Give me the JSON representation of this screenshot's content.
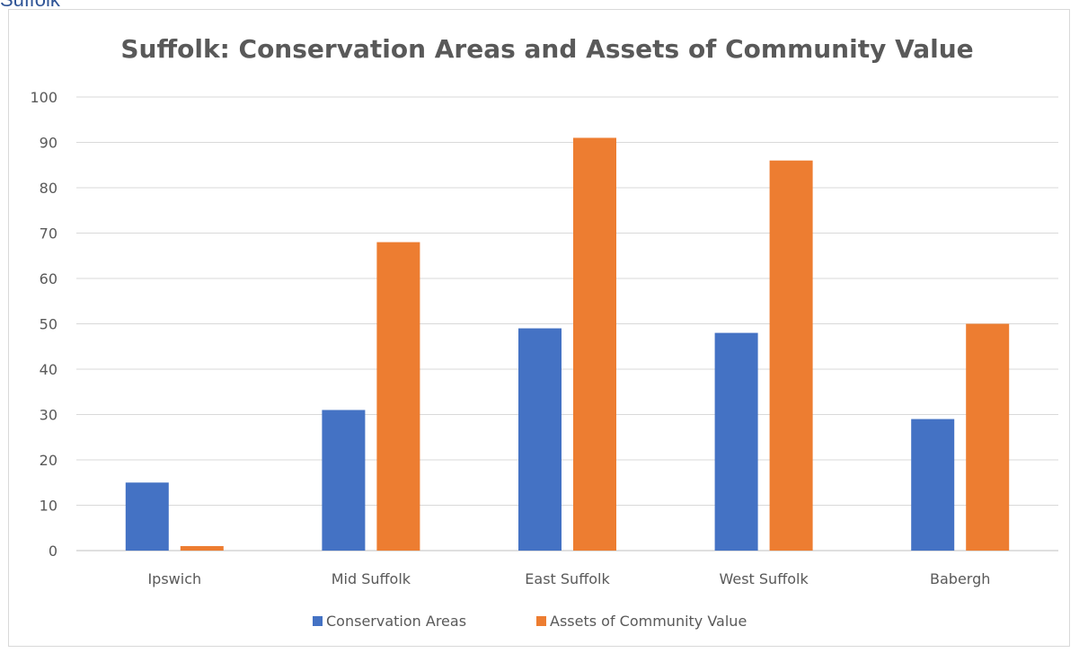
{
  "page": {
    "heading": "Suffolk"
  },
  "chart_data": {
    "type": "bar",
    "title": "Suffolk: Conservation Areas and Assets of Community Value",
    "xlabel": "",
    "ylabel": "",
    "categories": [
      "Ipswich",
      "Mid Suffolk",
      "East Suffolk",
      "West Suffolk",
      "Babergh"
    ],
    "series": [
      {
        "name": "Conservation Areas",
        "color": "#4472c4",
        "values": [
          15,
          31,
          49,
          48,
          29
        ]
      },
      {
        "name": "Assets of Community Value",
        "color": "#ed7d31",
        "values": [
          1,
          68,
          91,
          86,
          50
        ]
      }
    ],
    "ylim": [
      0,
      100
    ],
    "yticks": [
      0,
      10,
      20,
      30,
      40,
      50,
      60,
      70,
      80,
      90,
      100
    ],
    "grid": true,
    "legend_position": "bottom"
  }
}
